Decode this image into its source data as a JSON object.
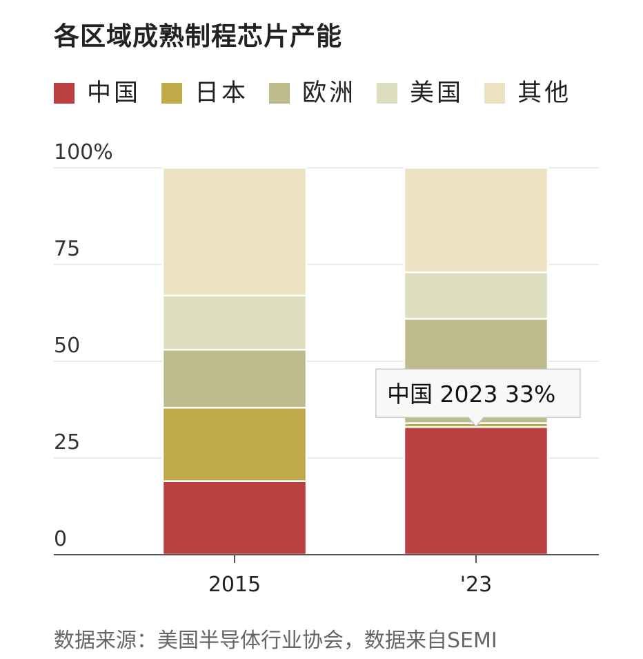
{
  "chart_data": {
    "type": "bar",
    "stacked": true,
    "title": "各区域成熟制程芯片产能",
    "categories": [
      "2015",
      "'23"
    ],
    "series": [
      {
        "name": "中国",
        "color": "#b93f40",
        "values": [
          19,
          33
        ]
      },
      {
        "name": "日本",
        "color": "#bfa948",
        "values": [
          19,
          1
        ]
      },
      {
        "name": "欧洲",
        "color": "#bdbb8c",
        "values": [
          15,
          27
        ]
      },
      {
        "name": "美国",
        "color": "#ddddc0",
        "values": [
          14,
          12
        ]
      },
      {
        "name": "其他",
        "color": "#ece2c2",
        "values": [
          33,
          27
        ]
      }
    ],
    "yticks": [
      {
        "value": 0,
        "label": "0"
      },
      {
        "value": 25,
        "label": "25"
      },
      {
        "value": 50,
        "label": "50"
      },
      {
        "value": 75,
        "label": "75"
      },
      {
        "value": 100,
        "label": "100%"
      }
    ],
    "ylim": [
      0,
      100
    ],
    "xlabel": "",
    "ylabel": "",
    "legend_position": "top",
    "annotation": {
      "text": "中国 2023 33%",
      "series": "中国",
      "category": "'23",
      "value": 33
    },
    "source": "数据来源：美国半导体行业协会，数据来自SEMI"
  }
}
